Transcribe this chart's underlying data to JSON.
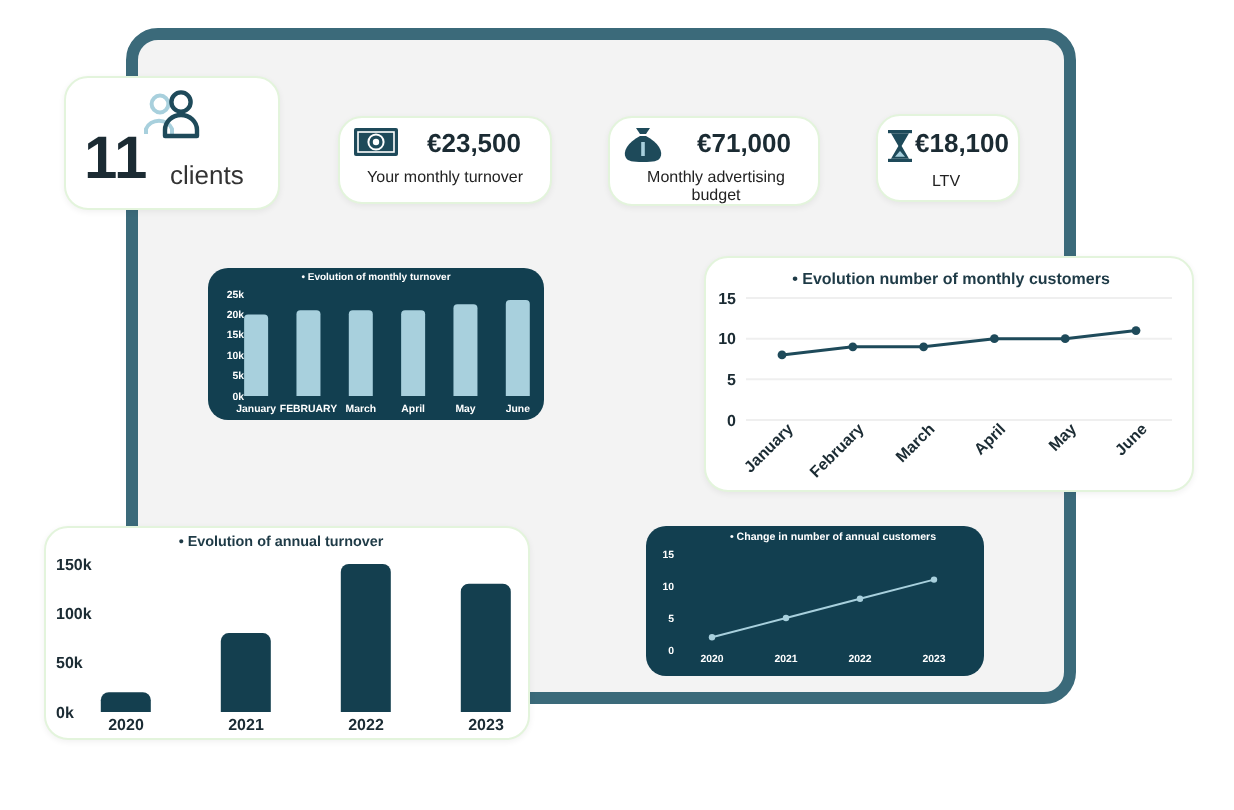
{
  "chart_data": [
    {
      "type": "other",
      "title": "11",
      "subtitle": "clients"
    },
    {
      "type": "other",
      "title": "€23,500",
      "subtitle": "Your monthly turnover"
    },
    {
      "type": "other",
      "title": "€71,000",
      "subtitle": "Monthly advertising budget"
    },
    {
      "type": "other",
      "title": "€18,100",
      "subtitle": "LTV"
    },
    {
      "type": "bar",
      "title": "• Evolution of monthly turnover",
      "categories": [
        "January",
        "FEBRUARY",
        "March",
        "April",
        "May",
        "June"
      ],
      "values": [
        20000,
        21000,
        21000,
        21000,
        22500,
        23500
      ],
      "color": "#a8d0dd",
      "ylim": [
        0,
        25000
      ],
      "yticks": [
        {
          "value": 0,
          "label": "0k"
        },
        {
          "value": 5000,
          "label": "5k"
        },
        {
          "value": 10000,
          "label": "10k"
        },
        {
          "value": 15000,
          "label": "15k"
        },
        {
          "value": 20000,
          "label": "20k"
        },
        {
          "value": 25000,
          "label": "25k"
        }
      ]
    },
    {
      "type": "line",
      "title": "• Evolution number of monthly customers",
      "categories": [
        "January",
        "February",
        "March",
        "April",
        "May",
        "June"
      ],
      "values": [
        8,
        9,
        9,
        10,
        10,
        11
      ],
      "color": "#1e4a5a",
      "ylim": [
        0,
        15
      ],
      "yticks": [
        0,
        5,
        10,
        15
      ],
      "grid": "y",
      "marker": "circle"
    },
    {
      "type": "bar",
      "title": "• Evolution of annual turnover",
      "categories": [
        "2020",
        "2021",
        "2022",
        "2023"
      ],
      "values": [
        20000,
        80000,
        150000,
        130000
      ],
      "color": "#143f4f",
      "ylim": [
        0,
        150000
      ],
      "yticks": [
        {
          "value": 0,
          "label": "0k"
        },
        {
          "value": 50000,
          "label": "50k"
        },
        {
          "value": 100000,
          "label": "100k"
        },
        {
          "value": 150000,
          "label": "150k"
        }
      ]
    },
    {
      "type": "line",
      "title": "• Change in number of annual customers",
      "categories": [
        "2020",
        "2021",
        "2022",
        "2023"
      ],
      "values": [
        2,
        5,
        8,
        11
      ],
      "color": "#a8d0dd",
      "ylim": [
        0,
        15
      ],
      "yticks": [
        0,
        5,
        10,
        15
      ],
      "marker": "circle"
    }
  ]
}
